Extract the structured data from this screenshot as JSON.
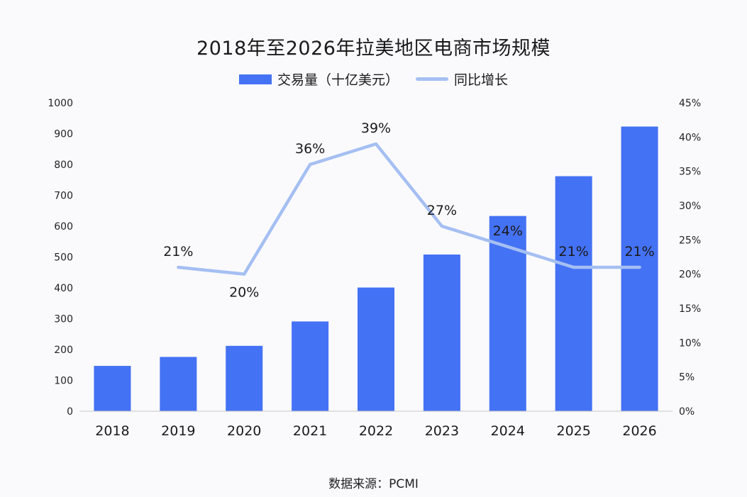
{
  "chart_data": {
    "type": "bar",
    "title": "2018年至2026年拉美地区电商市场规模",
    "categories": [
      "2018",
      "2019",
      "2020",
      "2021",
      "2022",
      "2023",
      "2024",
      "2025",
      "2026"
    ],
    "series": [
      {
        "name": "交易量（十亿美元）",
        "type": "bar",
        "axis": "left",
        "color": "#4472f4",
        "values": [
          147,
          176,
          212,
          291,
          401,
          508,
          633,
          762,
          923
        ]
      },
      {
        "name": "同比增长",
        "type": "line",
        "axis": "right",
        "color": "#a5bff2",
        "values": [
          null,
          0.21,
          0.2,
          0.36,
          0.39,
          0.27,
          0.24,
          0.21,
          0.21
        ],
        "labels": [
          "",
          "21%",
          "20%",
          "36%",
          "39%",
          "27%",
          "24%",
          "21%",
          "21%"
        ]
      }
    ],
    "y_left": {
      "ylim": [
        0,
        1000
      ],
      "ticks": [
        "0",
        "100",
        "200",
        "300",
        "400",
        "500",
        "600",
        "700",
        "800",
        "900",
        "1000"
      ]
    },
    "y_right": {
      "ylim": [
        0,
        0.45
      ],
      "ticks": [
        "0%",
        "5%",
        "10%",
        "15%",
        "20%",
        "25%",
        "30%",
        "35%",
        "40%",
        "45%"
      ]
    },
    "legend_position": "top-center",
    "grid": false,
    "source": "数据来源：PCMI"
  }
}
